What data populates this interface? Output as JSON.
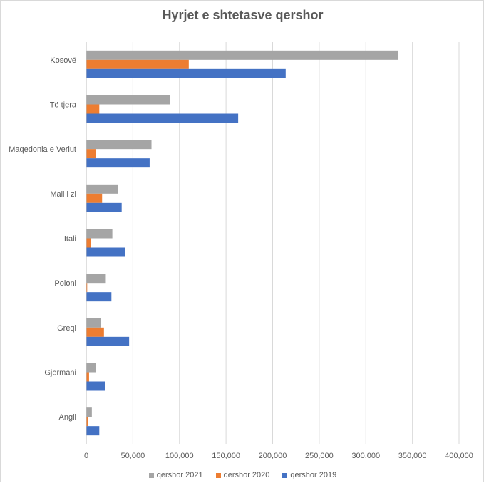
{
  "chart_data": {
    "type": "bar",
    "orientation": "horizontal",
    "title": "Hyrjet e shtetasve qershor",
    "categories": [
      "Kosovë",
      "Të tjera",
      "Maqedonia e Veriut",
      "Mali i zi",
      "Itali",
      "Poloni",
      "Greqi",
      "Gjermani",
      "Angli"
    ],
    "series": [
      {
        "name": "qershor 2021",
        "color": "#a5a5a5",
        "values": [
          335000,
          90000,
          70000,
          34000,
          28000,
          21000,
          16000,
          10000,
          6000
        ]
      },
      {
        "name": "qershor 2020",
        "color": "#ed7d31",
        "values": [
          110000,
          14000,
          10000,
          17000,
          5000,
          1000,
          19000,
          3000,
          2000
        ]
      },
      {
        "name": "qershor 2019",
        "color": "#4472c4",
        "values": [
          214000,
          163000,
          68000,
          38000,
          42000,
          27000,
          46000,
          20000,
          14000
        ]
      }
    ],
    "xlim": [
      0,
      400000
    ],
    "xticks": [
      "0",
      "50,000",
      "100,000",
      "150,000",
      "200,000",
      "250,000",
      "300,000",
      "350,000",
      "400,000"
    ],
    "grid": true,
    "legend_position": "bottom"
  }
}
